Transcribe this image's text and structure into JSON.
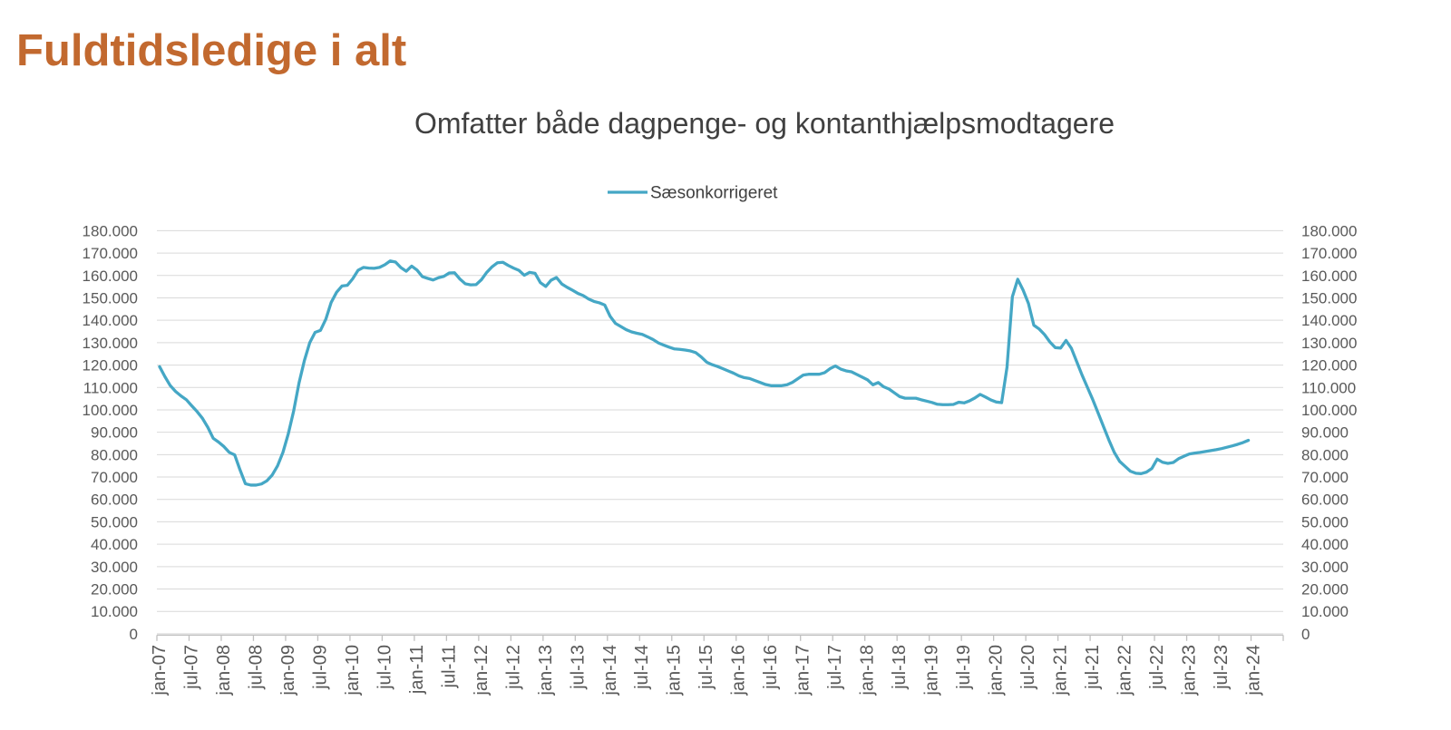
{
  "page": {
    "title": "Fuldtidsledige i alt"
  },
  "chart": {
    "title": "Omfatter både dagpenge- og kontanthjælpsmodtagere",
    "legend": {
      "label": "Sæsonkorrigeret"
    }
  },
  "colors": {
    "page_title": "#c2692f",
    "chart_title": "#404040",
    "legend_text": "#404040",
    "axis_label": "#595959",
    "gridline": "#d9d9d9",
    "axis_line": "#bfbfbf",
    "series": "#45a7c5",
    "background": "#ffffff"
  },
  "chart_data": {
    "type": "line",
    "title": "Omfatter både dagpenge- og kontanthjælpsmodtagere",
    "xlabel": "",
    "ylabel": "",
    "ylim": [
      0,
      180000
    ],
    "grid": true,
    "legend_position": "top",
    "x_tick_labels": [
      "jan-07",
      "jul-07",
      "jan-08",
      "jul-08",
      "jan-09",
      "jul-09",
      "jan-10",
      "jul-10",
      "jan-11",
      "jul-11",
      "jan-12",
      "jul-12",
      "jan-13",
      "jul-13",
      "jan-14",
      "jul-14",
      "jan-15",
      "jul-15",
      "jan-16",
      "jul-16",
      "jan-17",
      "jul-17",
      "jan-18",
      "jul-18",
      "jan-19",
      "jul-19",
      "jan-20",
      "jul-20",
      "jan-21",
      "jul-21",
      "jan-22",
      "jul-22",
      "jan-23",
      "jul-23",
      "jan-24"
    ],
    "y_ticks": [
      0,
      10000,
      20000,
      30000,
      40000,
      50000,
      60000,
      70000,
      80000,
      90000,
      100000,
      110000,
      120000,
      130000,
      140000,
      150000,
      160000,
      170000,
      180000
    ],
    "y_tick_labels": [
      "0",
      "10.000",
      "20.000",
      "30.000",
      "40.000",
      "50.000",
      "60.000",
      "70.000",
      "80.000",
      "90.000",
      "100.000",
      "110.000",
      "120.000",
      "130.000",
      "140.000",
      "150.000",
      "160.000",
      "170.000",
      "180.000"
    ],
    "series": [
      {
        "name": "Sæsonkorrigeret",
        "color": "#45a7c5",
        "x": [
          "jan-07",
          "feb-07",
          "mar-07",
          "apr-07",
          "maj-07",
          "jun-07",
          "jul-07",
          "aug-07",
          "sep-07",
          "okt-07",
          "nov-07",
          "dec-07",
          "jan-08",
          "feb-08",
          "mar-08",
          "apr-08",
          "maj-08",
          "jun-08",
          "jul-08",
          "aug-08",
          "sep-08",
          "okt-08",
          "nov-08",
          "dec-08",
          "jan-09",
          "feb-09",
          "mar-09",
          "apr-09",
          "maj-09",
          "jun-09",
          "jul-09",
          "aug-09",
          "sep-09",
          "okt-09",
          "nov-09",
          "dec-09",
          "jan-10",
          "feb-10",
          "mar-10",
          "apr-10",
          "maj-10",
          "jun-10",
          "jul-10",
          "aug-10",
          "sep-10",
          "okt-10",
          "nov-10",
          "dec-10",
          "jan-11",
          "feb-11",
          "mar-11",
          "apr-11",
          "maj-11",
          "jun-11",
          "jul-11",
          "aug-11",
          "sep-11",
          "okt-11",
          "nov-11",
          "dec-11",
          "jan-12",
          "feb-12",
          "mar-12",
          "apr-12",
          "maj-12",
          "jun-12",
          "jul-12",
          "aug-12",
          "sep-12",
          "okt-12",
          "nov-12",
          "dec-12",
          "jan-13",
          "feb-13",
          "mar-13",
          "apr-13",
          "maj-13",
          "jun-13",
          "jul-13",
          "aug-13",
          "sep-13",
          "okt-13",
          "nov-13",
          "dec-13",
          "jan-14",
          "feb-14",
          "mar-14",
          "apr-14",
          "maj-14",
          "jun-14",
          "jul-14",
          "aug-14",
          "sep-14",
          "okt-14",
          "nov-14",
          "dec-14",
          "jan-15",
          "feb-15",
          "mar-15",
          "apr-15",
          "maj-15",
          "jun-15",
          "jul-15",
          "aug-15",
          "sep-15",
          "okt-15",
          "nov-15",
          "dec-15",
          "jan-16",
          "feb-16",
          "mar-16",
          "apr-16",
          "maj-16",
          "jun-16",
          "jul-16",
          "aug-16",
          "sep-16",
          "okt-16",
          "nov-16",
          "dec-16",
          "jan-17",
          "feb-17",
          "mar-17",
          "apr-17",
          "maj-17",
          "jun-17",
          "jul-17",
          "aug-17",
          "sep-17",
          "okt-17",
          "nov-17",
          "dec-17",
          "jan-18",
          "feb-18",
          "mar-18",
          "apr-18",
          "maj-18",
          "jun-18",
          "jul-18",
          "aug-18",
          "sep-18",
          "okt-18",
          "nov-18",
          "dec-18",
          "jan-19",
          "feb-19",
          "mar-19",
          "apr-19",
          "maj-19",
          "jun-19",
          "jul-19",
          "aug-19",
          "sep-19",
          "okt-19",
          "nov-19",
          "dec-19",
          "jan-20",
          "feb-20",
          "mar-20",
          "apr-20",
          "maj-20",
          "jun-20",
          "jul-20",
          "aug-20",
          "sep-20",
          "okt-20",
          "nov-20",
          "dec-20",
          "jan-21",
          "feb-21",
          "mar-21",
          "apr-21",
          "maj-21",
          "jun-21",
          "jul-21",
          "aug-21",
          "sep-21",
          "okt-21",
          "nov-21",
          "dec-21",
          "jan-22",
          "feb-22",
          "mar-22",
          "apr-22",
          "maj-22",
          "jun-22",
          "jul-22",
          "aug-22",
          "sep-22",
          "okt-22",
          "nov-22",
          "dec-22",
          "jan-23",
          "feb-23",
          "mar-23",
          "apr-23",
          "maj-23",
          "jun-23",
          "jul-23",
          "aug-23",
          "sep-23",
          "okt-23",
          "nov-23",
          "dec-23"
        ],
        "values": [
          119300,
          114800,
          110800,
          108200,
          106200,
          104500,
          101800,
          99200,
          96200,
          92200,
          87300,
          85600,
          83600,
          81000,
          79900,
          73200,
          67000,
          66400,
          66400,
          66900,
          68300,
          70900,
          75000,
          81000,
          89300,
          99500,
          112000,
          122000,
          130000,
          134600,
          135500,
          140500,
          148000,
          152500,
          155300,
          155600,
          158500,
          162300,
          163600,
          163300,
          163200,
          163600,
          164800,
          166500,
          166000,
          163500,
          161900,
          164200,
          162400,
          159500,
          158700,
          158000,
          159000,
          159600,
          161100,
          161200,
          158400,
          156300,
          155800,
          155900,
          158100,
          161400,
          163900,
          165700,
          165900,
          164500,
          163300,
          162300,
          160100,
          161400,
          161000,
          156800,
          155100,
          157900,
          159100,
          156200,
          154700,
          153400,
          152000,
          151000,
          149500,
          148400,
          147800,
          146800,
          141800,
          138600,
          137200,
          135800,
          134800,
          134200,
          133700,
          132600,
          131400,
          129900,
          128900,
          128000,
          127200,
          127000,
          126700,
          126300,
          125500,
          123600,
          121300,
          120200,
          119400,
          118400,
          117400,
          116400,
          115200,
          114400,
          114000,
          113100,
          112200,
          111300,
          110800,
          110800,
          110800,
          111200,
          112300,
          113900,
          115500,
          115900,
          115900,
          115900,
          116600,
          118400,
          119600,
          118200,
          117400,
          117000,
          115800,
          114600,
          113400,
          111200,
          112200,
          110300,
          109300,
          107600,
          105900,
          105200,
          105200,
          105200,
          104500,
          103900,
          103300,
          102500,
          102300,
          102300,
          102400,
          103400,
          103100,
          104000,
          105300,
          106900,
          105700,
          104400,
          103500,
          103200,
          119000,
          150500,
          158300,
          153500,
          147500,
          137800,
          136100,
          133600,
          130300,
          127800,
          127600,
          131000,
          127500,
          121500,
          115500,
          110000,
          104500,
          98500,
          92500,
          86500,
          81000,
          77000,
          74800,
          72600,
          71700,
          71500,
          72200,
          73800,
          78000,
          76600,
          76100,
          76500,
          78200,
          79300,
          80300,
          80700,
          81000,
          81400,
          81800,
          82200,
          82700,
          83300,
          83900,
          84600,
          85400,
          86400
        ]
      }
    ]
  }
}
